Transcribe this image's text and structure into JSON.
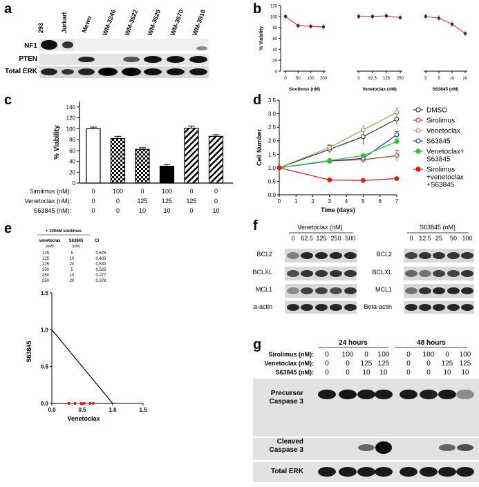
{
  "panels": {
    "a": "a",
    "b": "b",
    "c": "c",
    "d": "d",
    "e": "e",
    "f": "f",
    "g": "g"
  },
  "panel_a": {
    "lanes": [
      "293",
      "Jurkart",
      "Mewo",
      "WM-3246",
      "WM-3622",
      "WM-3629",
      "WM-3670",
      "WM-3918"
    ],
    "rows": [
      "NF1",
      "PTEN",
      "Total ERK"
    ]
  },
  "chart_data": [
    {
      "id": "b",
      "type": "line",
      "ylabel": "% Viability",
      "ylim": [
        0,
        120
      ],
      "yticks": [
        "0",
        "20",
        "40",
        "60",
        "80",
        "100",
        "120"
      ],
      "groups": [
        {
          "name": "Sirolimus (nM)",
          "x": [
            "0",
            "50",
            "100",
            "200"
          ],
          "values": [
            100,
            83,
            82,
            81
          ]
        },
        {
          "name": "Venetoclax (nM)",
          "x": [
            "0",
            "62.5",
            "125",
            "250"
          ],
          "values": [
            100,
            100,
            101,
            98
          ]
        },
        {
          "name": "S63845 (nM)",
          "x": [
            "0",
            "5",
            "10",
            "20"
          ],
          "values": [
            100,
            97,
            86,
            69
          ]
        }
      ],
      "color": "#d62020"
    },
    {
      "id": "c",
      "type": "bar",
      "ylabel": "% Viability",
      "ylim": [
        0,
        150
      ],
      "yticks": [
        "0",
        "20",
        "40",
        "60",
        "80",
        "100",
        "120",
        "140"
      ],
      "values": [
        100,
        82,
        62,
        31,
        101,
        86
      ],
      "errors": [
        3,
        4,
        3,
        3,
        4,
        3
      ],
      "patterns": [
        "white",
        "checker",
        "checker",
        "black",
        "hatch",
        "hatch"
      ],
      "condition_rows": [
        {
          "label": "Sirolimus (nM):",
          "values": [
            "0",
            "100",
            "0",
            "100",
            "0",
            "0"
          ]
        },
        {
          "label": "Venetoclax (nM):",
          "values": [
            "0",
            "0",
            "125",
            "125",
            "125",
            "0"
          ]
        },
        {
          "label": "S63845 (nM):",
          "values": [
            "0",
            "0",
            "10",
            "10",
            "0",
            "10"
          ]
        }
      ]
    },
    {
      "id": "d",
      "type": "line",
      "xlabel": "Time (days)",
      "ylabel": "Cell Number",
      "xlim": [
        0,
        7
      ],
      "ylim": [
        0,
        3.5
      ],
      "xticks": [
        "0",
        "1",
        "2",
        "3",
        "4",
        "5",
        "6",
        "7"
      ],
      "yticks": [
        "0.0",
        "0.5",
        "1.0",
        "1.5",
        "2.0",
        "2.5",
        "3.0",
        "3.5"
      ],
      "x": [
        0,
        3,
        5,
        7
      ],
      "series": [
        {
          "name": "DMSO",
          "color": "#333333",
          "marker": "open",
          "values": [
            1.0,
            1.68,
            2.15,
            2.8
          ],
          "errors": [
            0,
            0.15,
            0.3,
            0.2
          ]
        },
        {
          "name": "Sirolimus",
          "color": "#c0392b",
          "marker": "open",
          "values": [
            1.0,
            1.25,
            1.3,
            1.45
          ],
          "errors": [
            0,
            0.06,
            0.12,
            0.2
          ]
        },
        {
          "name": "Venetoclax",
          "color": "#a89060",
          "marker": "open",
          "values": [
            1.0,
            1.75,
            2.4,
            3.05
          ],
          "errors": [
            0,
            0.1,
            0.15,
            0.15
          ]
        },
        {
          "name": "S63845",
          "color": "#2038d8",
          "marker": "open",
          "values": [
            1.0,
            1.25,
            1.35,
            2.22
          ],
          "errors": [
            0,
            0.06,
            0.06,
            0.12
          ]
        },
        {
          "name": "Venetoclax+\nS63845",
          "color": "#22cc22",
          "marker": "filled",
          "values": [
            1.0,
            1.27,
            1.45,
            1.97
          ],
          "errors": [
            0,
            0.05,
            0.06,
            0.1
          ]
        },
        {
          "name": "Sirolimus\n+venetoclax\n+S63845",
          "color": "#ee1111",
          "marker": "filled",
          "values": [
            1.0,
            0.55,
            0.53,
            0.6
          ],
          "errors": [
            0,
            0.05,
            0.03,
            0.05
          ]
        }
      ]
    },
    {
      "id": "e",
      "type": "scatter",
      "xlabel": "Venetoclax",
      "ylabel": "S63845",
      "xlim": [
        0,
        1.5
      ],
      "ylim": [
        0,
        1.5
      ],
      "xticks": [
        "0.0",
        "0.5",
        "1.0",
        "1.5"
      ],
      "yticks": [
        "0.0",
        "0.5",
        "1.0",
        "1.5"
      ],
      "line": [
        [
          0,
          1.0
        ],
        [
          1.0,
          0
        ]
      ],
      "points_x": [
        0.28,
        0.38,
        0.48,
        0.53,
        0.63,
        0.68
      ],
      "points_y": [
        0,
        0,
        0,
        0,
        0,
        0
      ],
      "point_color": "#e31b1b",
      "table": {
        "caption": "+ 100nM sirolimus",
        "headers": [
          "venetoclax",
          "S63845",
          "CI"
        ],
        "units": [
          "(nM)",
          "(nM)",
          ""
        ],
        "rows": [
          [
            "125",
            "5",
            "0.676"
          ],
          [
            "125",
            "10",
            "0.483"
          ],
          [
            "125",
            "20",
            "0.633"
          ],
          [
            "250",
            "5",
            "0.525"
          ],
          [
            "250",
            "10",
            "0.277"
          ],
          [
            "250",
            "20",
            "0.378"
          ]
        ]
      }
    }
  ],
  "panel_f": {
    "left_title": "Venetoclax (nM)",
    "left_lanes": [
      "0",
      "62.5",
      "125",
      "250",
      "500"
    ],
    "right_title": "S63845 (nM)",
    "right_lanes": [
      "0",
      "12.5",
      "25",
      "50",
      "100"
    ],
    "rows": [
      "BCL2",
      "BCLXL",
      "MCL1",
      "Beta-actin"
    ]
  },
  "panel_g": {
    "timepoints": [
      "24 hours",
      "48 hours"
    ],
    "rows": [
      {
        "label": "Sirolimus (nM):",
        "values": [
          "0",
          "100",
          "0",
          "100"
        ]
      },
      {
        "label": "Venetoclax (nM):",
        "values": [
          "0",
          "0",
          "125",
          "125"
        ]
      },
      {
        "label": "S63845 (nM):",
        "values": [
          "0",
          "0",
          "10",
          "10"
        ]
      }
    ],
    "band_labels": {
      "precursor_1": "Precursor",
      "precursor_2": "Caspase 3",
      "cleaved_1": "Cleaved",
      "cleaved_2": "Caspase 3",
      "total": "Total ERK"
    }
  }
}
